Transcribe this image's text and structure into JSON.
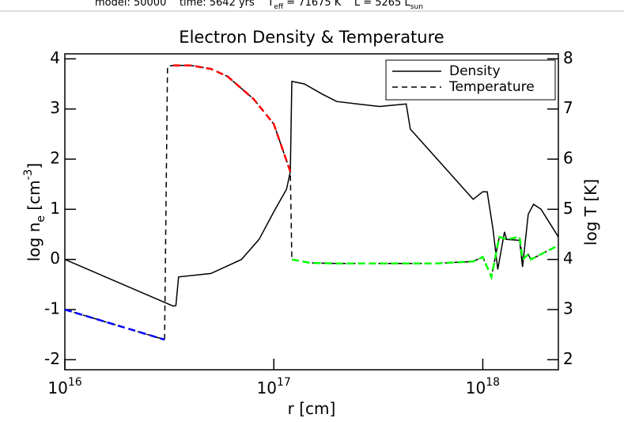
{
  "chart_data": {
    "type": "line",
    "header": [
      {
        "text": "model: 50000    time: 5642 yrs    T"
      },
      {
        "text": "eff",
        "shift": "sub"
      },
      {
        "text": " = 71675 K    L = 5265 L"
      },
      {
        "text": "sun",
        "shift": "sub"
      }
    ],
    "title": "Electron Density & Temperature",
    "xlabel": [
      {
        "text": "r [cm]"
      }
    ],
    "ylabel": [
      {
        "text": "log n"
      },
      {
        "text": "e",
        "shift": "sub"
      },
      {
        "text": " [cm"
      },
      {
        "text": "-3",
        "shift": "super"
      },
      {
        "text": "]"
      }
    ],
    "y2label": [
      {
        "text": "log T [K]"
      }
    ],
    "log_x": true,
    "xlim": [
      1e+16,
      2.3e+18
    ],
    "xticks": [
      {
        "value": 1e+16,
        "label": "10",
        "exponent": "16"
      },
      {
        "value": 1e+17,
        "label": "10",
        "exponent": "17"
      },
      {
        "value": 1e+18,
        "label": "10",
        "exponent": "18"
      }
    ],
    "ylim": [
      -2.2,
      4.1
    ],
    "yticks": [
      -2,
      -1,
      0,
      1,
      2,
      3,
      4
    ],
    "y2lim": [
      1.8,
      8.1
    ],
    "y2ticks": [
      2,
      3,
      4,
      5,
      6,
      7,
      8
    ],
    "legend": "upper right",
    "series": [
      {
        "name": "Density",
        "color": "#000000",
        "style": "solid",
        "axis": "y",
        "x": [
          1e+16,
          3.3e+16,
          3.4e+16,
          3.5e+16,
          5e+16,
          7e+16,
          8.5e+16,
          1e+17,
          1.15e+17,
          1.2e+17,
          1.22e+17,
          1.4e+17,
          1.7e+17,
          2e+17,
          2.5e+17,
          3.2e+17,
          4.3e+17,
          4.5e+17,
          9e+17,
          1e+18,
          1.05e+18,
          1.12e+18,
          1.18e+18,
          1.27e+18,
          1.3e+18,
          1.5e+18,
          1.55e+18,
          1.65e+18,
          1.75e+18,
          1.9e+18,
          2.3e+18
        ],
        "values": [
          0,
          -0.93,
          -0.92,
          -0.35,
          -0.28,
          0.0,
          0.4,
          0.95,
          1.4,
          1.75,
          3.55,
          3.5,
          3.3,
          3.15,
          3.1,
          3.05,
          3.1,
          2.6,
          1.2,
          1.35,
          1.35,
          0.6,
          -0.2,
          0.55,
          0.4,
          0.38,
          -0.15,
          0.9,
          1.1,
          1.0,
          0.45
        ]
      },
      {
        "name": "Temperature",
        "color": "#000000",
        "style": "dashed",
        "axis": "y2",
        "x": [
          1e+16,
          3e+16,
          3.1e+16,
          3.3e+16,
          4e+16,
          5e+16,
          6e+16,
          8e+16,
          1e+17,
          1.2e+17,
          1.22e+17,
          1.5e+17,
          2e+17,
          4e+17,
          6e+17,
          9e+17,
          1e+18,
          1.1e+18,
          1.2e+18,
          1.3e+18,
          1.5e+18,
          1.55e+18,
          1.65e+18,
          1.7e+18,
          2.3e+18
        ],
        "values": [
          3.0,
          2.4,
          7.85,
          7.87,
          7.87,
          7.8,
          7.65,
          7.2,
          6.7,
          5.75,
          4.0,
          3.93,
          3.92,
          3.92,
          3.92,
          3.96,
          4.05,
          3.65,
          4.45,
          4.4,
          4.45,
          4.0,
          4.1,
          4.0,
          4.28
        ],
        "colored_ranges": [
          {
            "color": "#0000ff",
            "start": 0,
            "end": 1
          },
          {
            "color": "#ff0000",
            "start": 3,
            "end": 9
          },
          {
            "color": "#00ff00",
            "start": 10,
            "end": 24
          }
        ]
      }
    ]
  }
}
